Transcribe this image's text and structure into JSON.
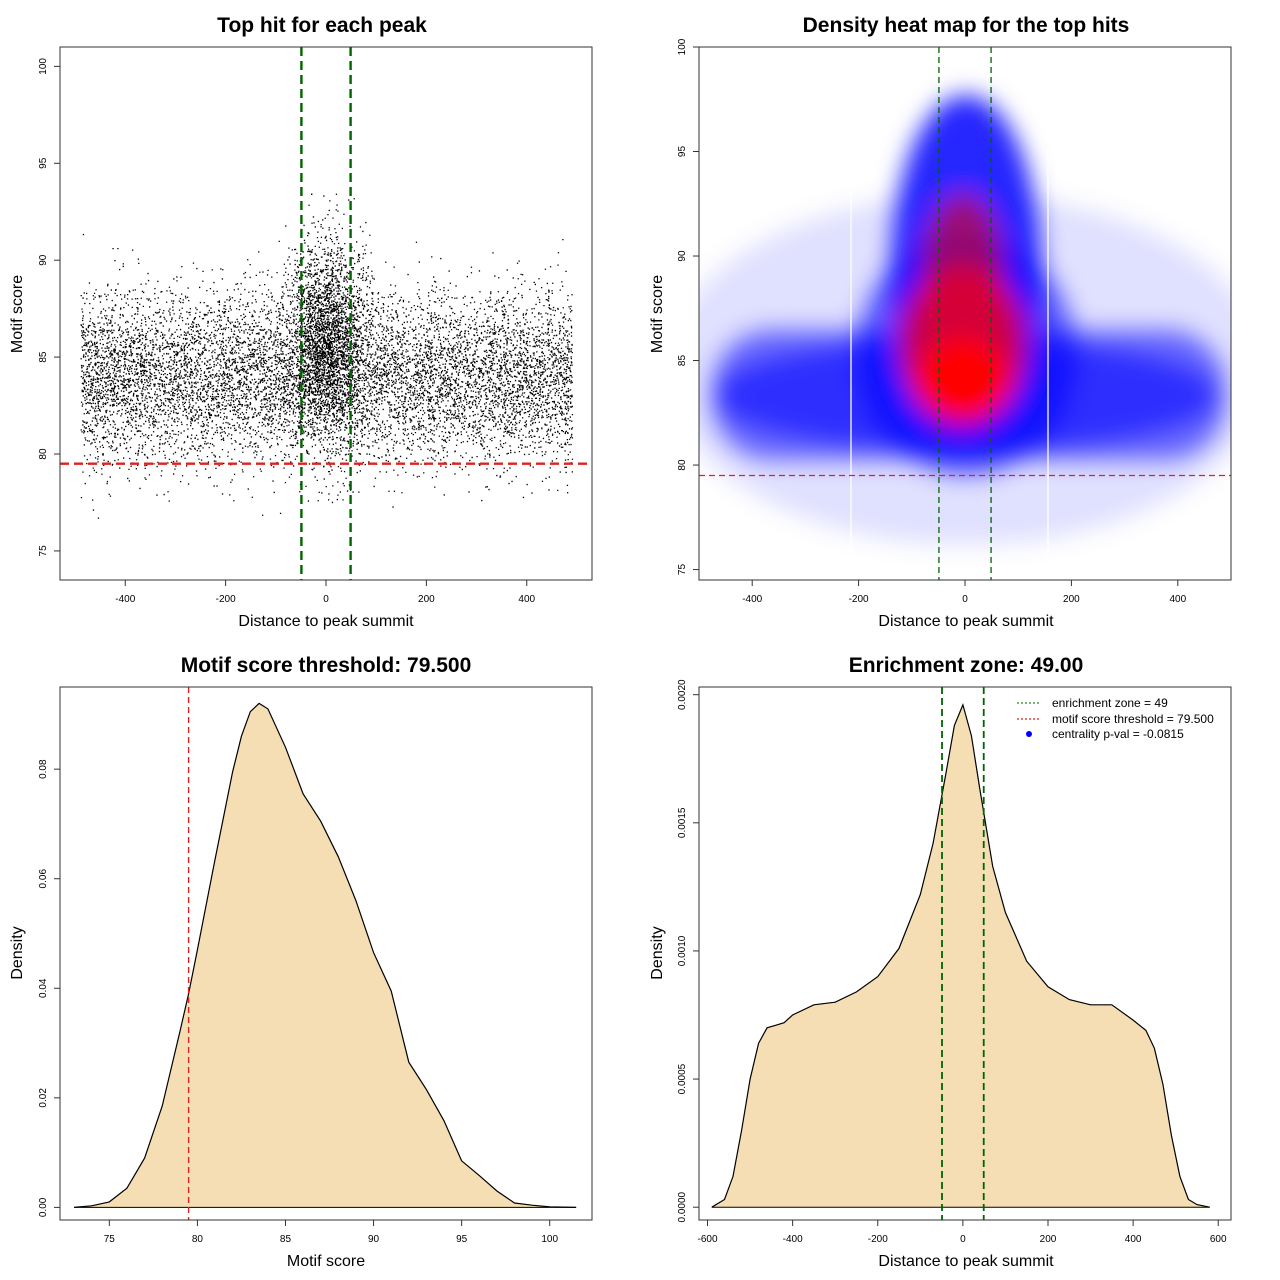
{
  "chart_data": [
    {
      "type": "scatter",
      "title": "Top hit for each peak",
      "xlabel": "Distance to peak summit",
      "ylabel": "Motif score",
      "xlim": [
        -530,
        530
      ],
      "ylim": [
        73.5,
        101
      ],
      "xticks": [
        -400,
        -200,
        0,
        200,
        400
      ],
      "yticks": [
        75,
        80,
        85,
        90,
        95,
        100
      ],
      "point_color": "#000000",
      "x_range_of_points": [
        -490,
        490
      ],
      "y_range_of_points": [
        74.5,
        100
      ],
      "approx_point_count": 12000,
      "reference_lines": [
        {
          "axis": "x",
          "value": -49,
          "color": "#006400",
          "style": "dashed"
        },
        {
          "axis": "x",
          "value": 49,
          "color": "#006400",
          "style": "dashed"
        },
        {
          "axis": "y",
          "value": 79.5,
          "color": "#dd2222",
          "style": "dashed"
        }
      ]
    },
    {
      "type": "heatmap",
      "title": "Density heat map for the top hits",
      "xlabel": "Distance to peak summit",
      "ylabel": "Motif score",
      "xlim": [
        -500,
        500
      ],
      "ylim": [
        74.5,
        100
      ],
      "xticks": [
        -400,
        -200,
        0,
        200,
        400
      ],
      "yticks": [
        75,
        80,
        85,
        90,
        95,
        100
      ],
      "color_scale": [
        "#ffffff",
        "#0000ff",
        "#ff0000"
      ],
      "density_peak": {
        "x": 0,
        "y": 84.5
      },
      "reference_lines": [
        {
          "axis": "x",
          "value": -49,
          "color": "#006400",
          "style": "dashed"
        },
        {
          "axis": "x",
          "value": 49,
          "color": "#006400",
          "style": "dashed"
        },
        {
          "axis": "y",
          "value": 79.5,
          "color": "#dd2222",
          "style": "dashed"
        }
      ]
    },
    {
      "type": "area",
      "title": "Motif score threshold: 79.500",
      "xlabel": "Motif score",
      "ylabel": "Density",
      "xlim": [
        72.2,
        102.4
      ],
      "ylim": [
        -0.0023,
        0.095
      ],
      "xticks": [
        75,
        80,
        85,
        90,
        95,
        100
      ],
      "yticks": [
        0.0,
        0.02,
        0.04,
        0.06,
        0.08
      ],
      "ytick_labels": [
        "0.00",
        "0.02",
        "0.04",
        "0.06",
        "0.08"
      ],
      "fill_color": "#f5deb3",
      "x": [
        73,
        74,
        75,
        76,
        77,
        78,
        79,
        79.5,
        80,
        81,
        82,
        82.5,
        83,
        83.5,
        84,
        85,
        86,
        87,
        88,
        89,
        90,
        91,
        92,
        93,
        94,
        95,
        96,
        97,
        98,
        99,
        100,
        101.5
      ],
      "values": [
        0.0,
        0.0003,
        0.001,
        0.0035,
        0.009,
        0.0185,
        0.032,
        0.039,
        0.047,
        0.0635,
        0.0795,
        0.086,
        0.0905,
        0.092,
        0.091,
        0.084,
        0.0755,
        0.0705,
        0.064,
        0.056,
        0.0465,
        0.0395,
        0.0265,
        0.0215,
        0.0158,
        0.0085,
        0.0058,
        0.003,
        0.0008,
        0.0004,
        0.0001,
        0.0
      ],
      "reference_lines": [
        {
          "axis": "x",
          "value": 79.5,
          "color": "#dd2222",
          "style": "dashed"
        }
      ]
    },
    {
      "type": "area",
      "title": "Enrichment zone: 49.00",
      "xlabel": "Distance to peak summit",
      "ylabel": "Density",
      "xlim": [
        -620,
        630
      ],
      "ylim": [
        -5e-05,
        0.00203
      ],
      "xticks": [
        -600,
        -400,
        -200,
        0,
        200,
        400,
        600
      ],
      "yticks": [
        0.0,
        0.0005,
        0.001,
        0.0015,
        0.002
      ],
      "ytick_labels": [
        "0.0000",
        "0.0005",
        "0.0010",
        "0.0015",
        "0.0020"
      ],
      "fill_color": "#f5deb3",
      "x": [
        -590,
        -560,
        -540,
        -520,
        -500,
        -480,
        -460,
        -440,
        -420,
        -400,
        -350,
        -300,
        -250,
        -200,
        -150,
        -100,
        -70,
        -40,
        -20,
        0,
        20,
        40,
        70,
        100,
        150,
        200,
        250,
        300,
        350,
        400,
        430,
        450,
        470,
        490,
        510,
        530,
        550,
        580
      ],
      "values": [
        0.0,
        3e-05,
        0.00012,
        0.0003,
        0.0005,
        0.00064,
        0.0007,
        0.00071,
        0.00072,
        0.00075,
        0.00079,
        0.0008,
        0.00084,
        0.0009,
        0.00101,
        0.00122,
        0.00142,
        0.00169,
        0.00188,
        0.00196,
        0.00184,
        0.00163,
        0.00133,
        0.00115,
        0.00096,
        0.00086,
        0.00081,
        0.00079,
        0.00079,
        0.00073,
        0.00069,
        0.00062,
        0.00048,
        0.00028,
        0.00012,
        3e-05,
        1e-05,
        0.0
      ],
      "reference_lines": [
        {
          "axis": "x",
          "value": -49,
          "color": "#006400",
          "style": "dashed"
        },
        {
          "axis": "x",
          "value": 49,
          "color": "#006400",
          "style": "dashed"
        }
      ],
      "legend": {
        "position": "top-right",
        "entries": [
          {
            "label": "enrichment zone = 49",
            "color": "#228b22",
            "style": "dotted-line"
          },
          {
            "label": "motif score threshold = 79.500",
            "color": "#dd2222",
            "style": "dotted-line"
          },
          {
            "label": "centrality p-val = -0.0815",
            "color": "#0000ff",
            "style": "point"
          }
        ]
      }
    }
  ]
}
